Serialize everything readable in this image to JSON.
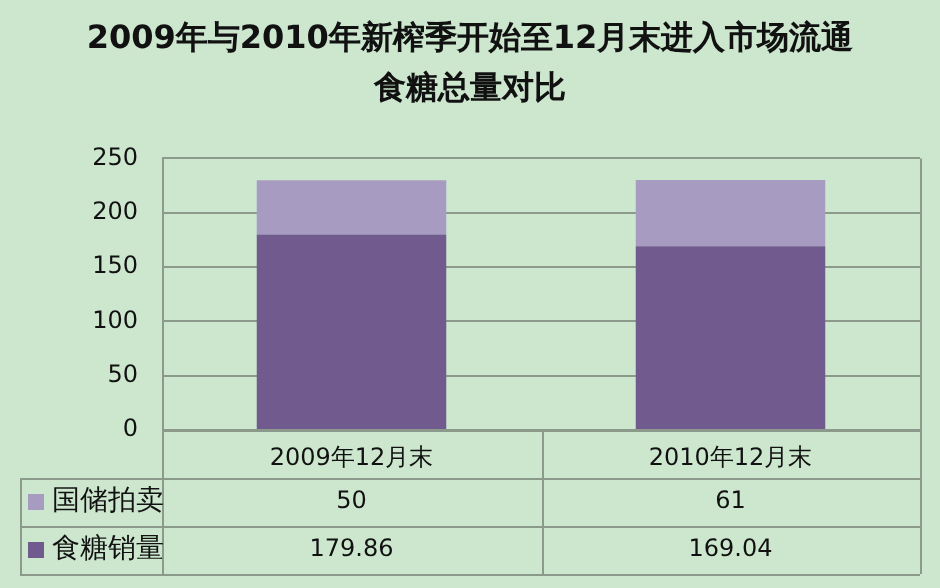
{
  "chart_data": {
    "type": "bar",
    "title": "2009年与2010年新榨季开始至12月末进入市场流通食糖总量对比",
    "categories": [
      "2009年12月末",
      "2010年12月末"
    ],
    "stacked": true,
    "series": [
      {
        "name": "食糖销量",
        "color": "#715a8e",
        "values": [
          179.86,
          169.04
        ]
      },
      {
        "name": "国储拍卖",
        "color": "#a89bc1",
        "values": [
          50,
          61
        ]
      }
    ],
    "ylim": [
      0,
      250
    ],
    "yticks": [
      0,
      50,
      100,
      150,
      200,
      250
    ],
    "grid": "y",
    "legend": "bottom left",
    "data_labels": true
  }
}
